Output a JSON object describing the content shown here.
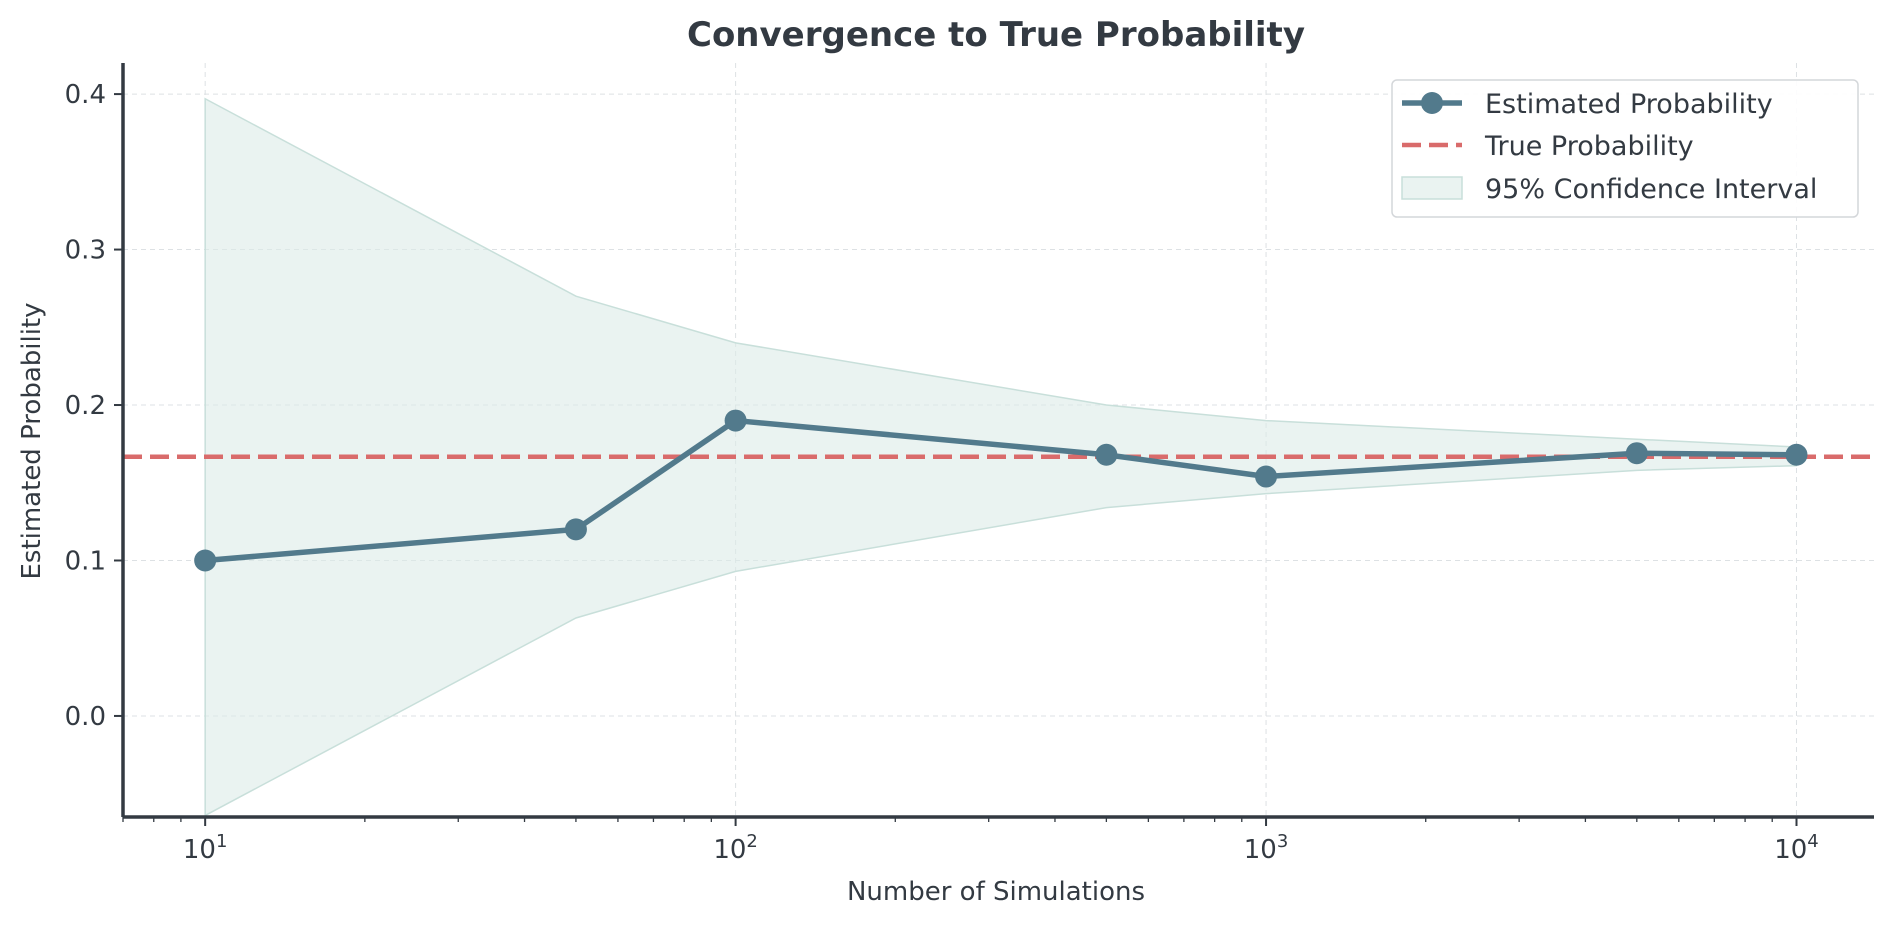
{
  "chart_data": {
    "type": "line",
    "title": "Convergence to True Probability",
    "xlabel": "Number of Simulations",
    "ylabel": "Estimated Probability",
    "xscale": "log",
    "xlim": [
      7,
      14000
    ],
    "ylim": [
      -0.065,
      0.42
    ],
    "x_ticks": [
      {
        "value": 10,
        "base": "10",
        "exp": "1"
      },
      {
        "value": 100,
        "base": "10",
        "exp": "2"
      },
      {
        "value": 1000,
        "base": "10",
        "exp": "3"
      },
      {
        "value": 10000,
        "base": "10",
        "exp": "4"
      }
    ],
    "y_ticks": [
      {
        "value": 0.0,
        "label": "0.0"
      },
      {
        "value": 0.1,
        "label": "0.1"
      },
      {
        "value": 0.2,
        "label": "0.2"
      },
      {
        "value": 0.3,
        "label": "0.3"
      },
      {
        "value": 0.4,
        "label": "0.4"
      }
    ],
    "grid": true,
    "legend_position": "top-right",
    "series": [
      {
        "name": "Estimated Probability",
        "kind": "line-markers",
        "color": "#527a8c",
        "x": [
          10,
          50,
          100,
          500,
          1000,
          5000,
          10000
        ],
        "y": [
          0.1,
          0.12,
          0.19,
          0.168,
          0.154,
          0.169,
          0.168
        ]
      },
      {
        "name": "True Probability",
        "kind": "hline-dashed",
        "color": "#d96b6b",
        "y": 0.1667
      },
      {
        "name": "95% Confidence Interval",
        "kind": "band",
        "color": "#dcebe8",
        "x": [
          10,
          50,
          100,
          500,
          1000,
          5000,
          10000
        ],
        "lower": [
          -0.064,
          0.063,
          0.093,
          0.134,
          0.143,
          0.158,
          0.161
        ],
        "upper": [
          0.397,
          0.27,
          0.24,
          0.2,
          0.19,
          0.178,
          0.173
        ]
      }
    ]
  }
}
